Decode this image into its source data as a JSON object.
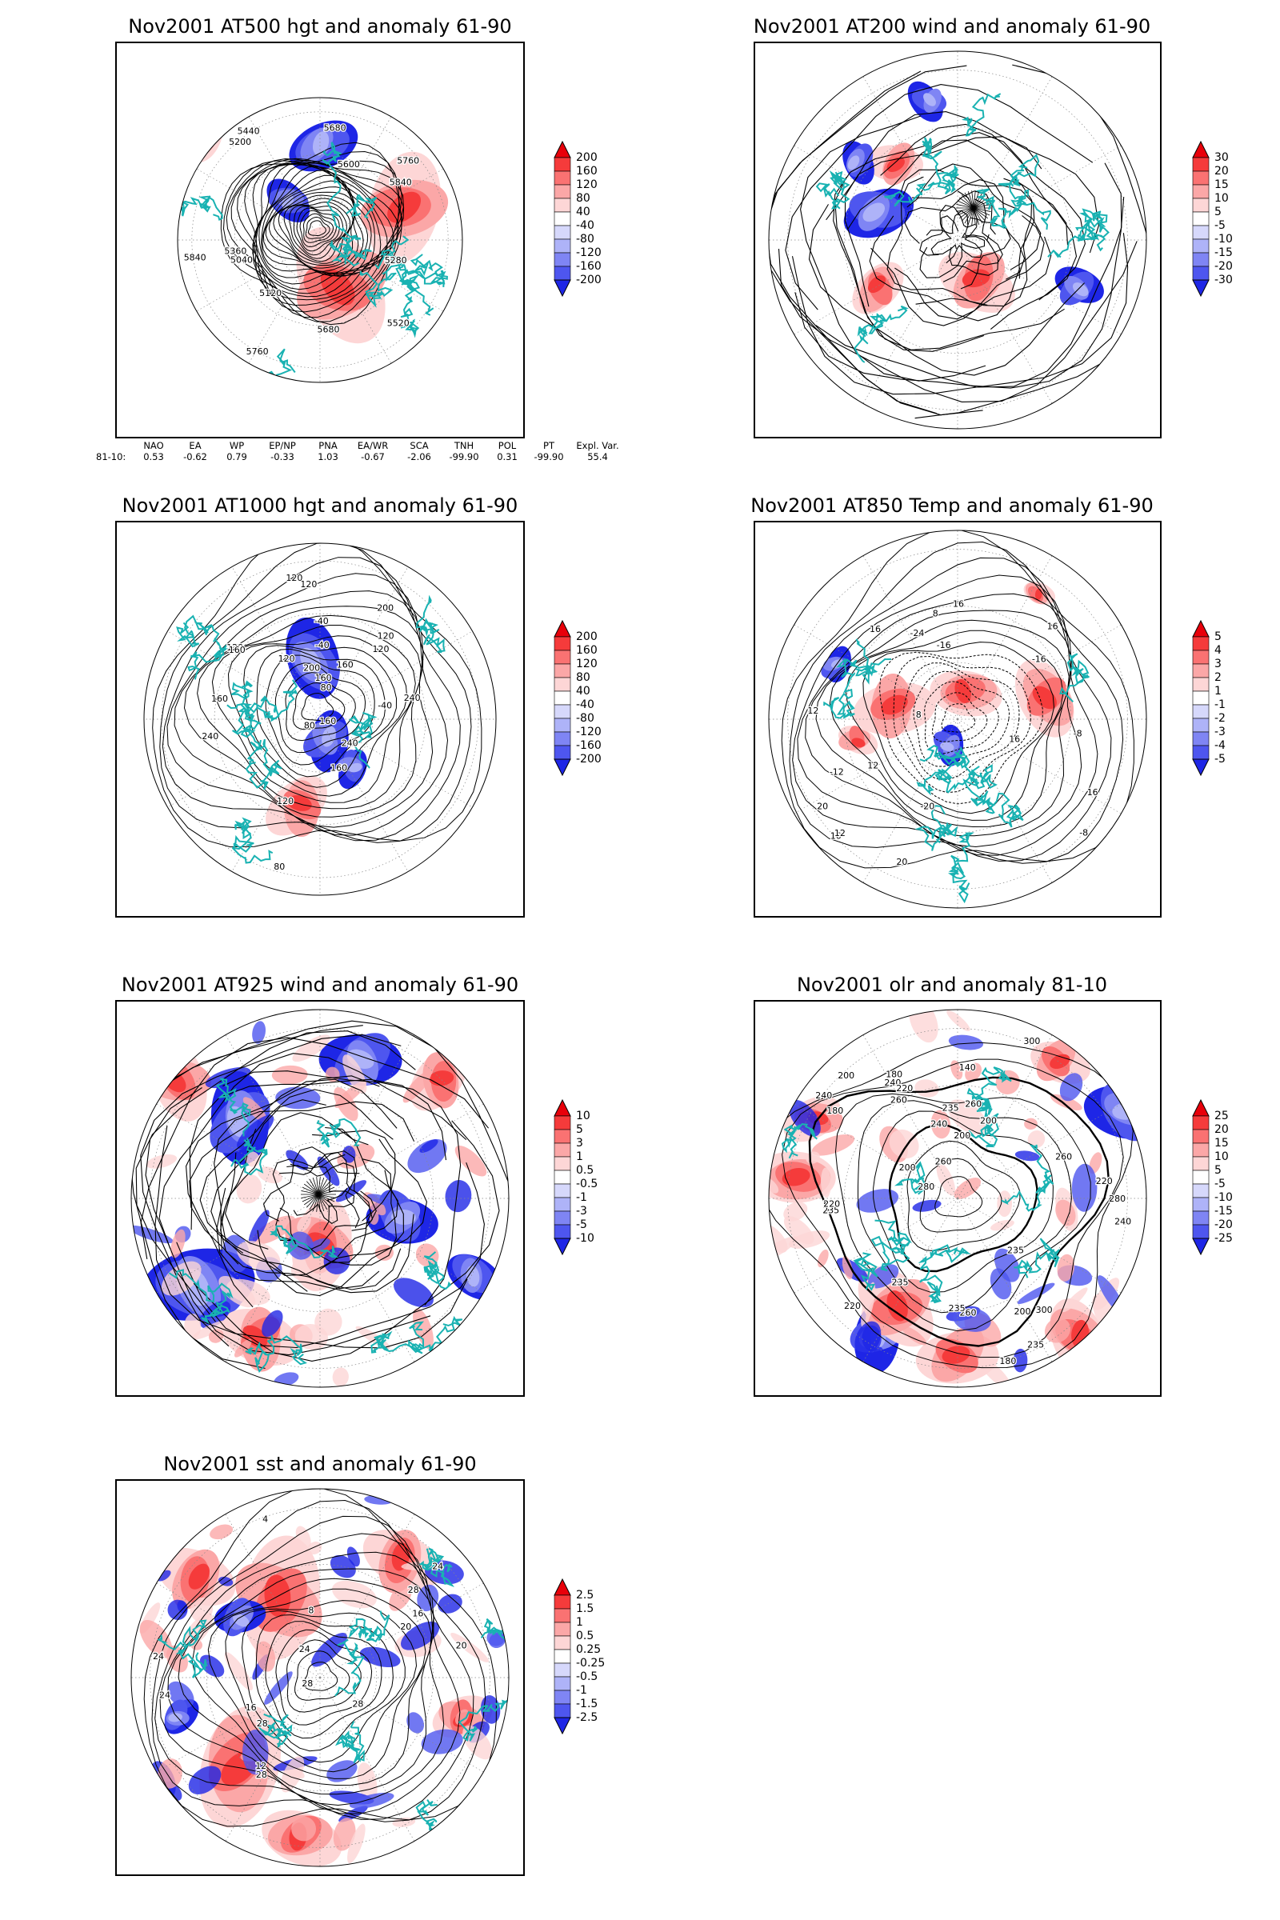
{
  "panels": [
    {
      "id": "p1",
      "title": "Nov2001 AT500 hgt and anomaly 61-90",
      "legend": [
        "200",
        "160",
        "120",
        "80",
        "40",
        "-40",
        "-80",
        "-120",
        "-160",
        "-200"
      ],
      "contour_labels": [
        "5840",
        "5760",
        "5680",
        "5200",
        "5120",
        "5040",
        "5280",
        "5360",
        "5440",
        "5520",
        "5600",
        "5680",
        "5760",
        "5840"
      ]
    },
    {
      "id": "p2",
      "title": "Nov2001 AT200 wind and anomaly 61-90",
      "legend": [
        "30",
        "20",
        "15",
        "10",
        "5",
        "-5",
        "-10",
        "-15",
        "-20",
        "-30"
      ],
      "contour_labels": []
    },
    {
      "id": "p3",
      "title": "Nov2001 AT1000 hgt and anomaly 61-90",
      "legend": [
        "200",
        "160",
        "120",
        "80",
        "40",
        "-40",
        "-80",
        "-120",
        "-160",
        "-200"
      ],
      "contour_labels": [
        "80",
        "80",
        "120",
        "120",
        "160",
        "160",
        "80",
        "-40",
        "-40",
        "120",
        "240",
        "240",
        "200",
        "160",
        "-40",
        "160",
        "120",
        "200",
        "240",
        "120",
        "160",
        "120",
        "120",
        "160"
      ]
    },
    {
      "id": "p4",
      "title": "Nov2001 AT850 Temp and anomaly 61-90",
      "legend": [
        "5",
        "4",
        "3",
        "2",
        "1",
        "-1",
        "-2",
        "-3",
        "-4",
        "-5"
      ],
      "contour_labels": [
        "16",
        "12",
        "8",
        "-16",
        "-20",
        "16",
        "16",
        "-8",
        "-16",
        "-24",
        "-12",
        "8",
        "12",
        "16",
        "16",
        "-8",
        "12",
        "16",
        "20",
        "20"
      ]
    },
    {
      "id": "p5",
      "title": "Nov2001 AT925 wind and anomaly 61-90",
      "legend": [
        "10",
        "5",
        "3",
        "1",
        "0.5",
        "-0.5",
        "-1",
        "-3",
        "-5",
        "-10"
      ],
      "contour_labels": []
    },
    {
      "id": "p6",
      "title": "Nov2001 olr and anomaly 81-10",
      "legend": [
        "25",
        "20",
        "15",
        "10",
        "5",
        "-5",
        "-10",
        "-15",
        "-20",
        "-25"
      ],
      "contour_labels": [
        "260",
        "240",
        "220",
        "235",
        "260",
        "280",
        "260",
        "240",
        "220",
        "235",
        "180",
        "200",
        "235",
        "240",
        "200",
        "180",
        "140",
        "180",
        "235",
        "200",
        "220",
        "260",
        "240",
        "235",
        "300",
        "280",
        "200",
        "260",
        "300",
        "235",
        "220",
        "200"
      ]
    },
    {
      "id": "p7",
      "title": "Nov2001 sst and anomaly 61-90",
      "legend": [
        "2.5",
        "1.5",
        "1",
        "0.5",
        "0.25",
        "-0.25",
        "-0.5",
        "-1",
        "-1.5",
        "-2.5"
      ],
      "contour_labels": [
        "28",
        "24",
        "24",
        "20",
        "16",
        "12",
        "8",
        "4",
        "28",
        "24",
        "28",
        "16",
        "20",
        "24",
        "28",
        "28"
      ]
    }
  ],
  "teleconnection": {
    "headers": [
      "NAO",
      "EA",
      "WP",
      "EP/NP",
      "PNA",
      "EA/WR",
      "SCA",
      "TNH",
      "POL",
      "PT",
      "Expl. Var."
    ],
    "row_label": "81-10:",
    "values": [
      "0.53",
      "-0.62",
      "0.79",
      "-0.33",
      "1.03",
      "-0.67",
      "-2.06",
      "-99.90",
      "0.31",
      "-99.90",
      "55.4"
    ]
  },
  "colors": {
    "land": "#19b2b2",
    "reds": [
      "#e8000a",
      "#f53b3b",
      "#fa7272",
      "#fba7a7",
      "#fdd6d6"
    ],
    "blues": [
      "#d6d8fb",
      "#aeb3f8",
      "#7f85f4",
      "#4e56ef",
      "#1e26e6"
    ]
  }
}
